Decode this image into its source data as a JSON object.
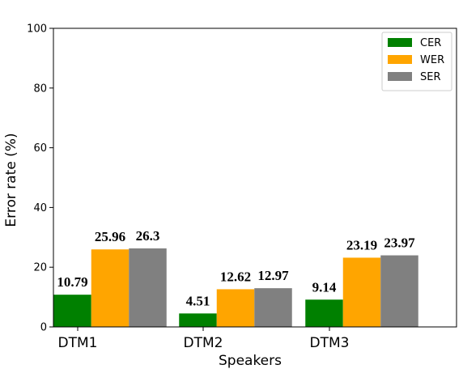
{
  "chart_data": {
    "type": "bar",
    "title": "",
    "xlabel": "Speakers",
    "ylabel": "Error rate (%)",
    "ylim": [
      0,
      100
    ],
    "yticks": [
      0,
      20,
      40,
      60,
      80,
      100
    ],
    "categories": [
      "DTM1",
      "DTM2",
      "DTM3"
    ],
    "series": [
      {
        "name": "CER",
        "color": "#008000",
        "values": [
          10.79,
          4.51,
          9.14
        ],
        "labels": [
          "10.79",
          "4.51",
          "9.14"
        ]
      },
      {
        "name": "WER",
        "color": "#FFA500",
        "values": [
          25.96,
          12.62,
          23.19
        ],
        "labels": [
          "25.96",
          "12.62",
          "23.19"
        ]
      },
      {
        "name": "SER",
        "color": "#808080",
        "values": [
          26.3,
          12.97,
          23.97
        ],
        "labels": [
          "26.3",
          "12.97",
          "23.97"
        ]
      }
    ],
    "legend_position": "top-right",
    "grid": false
  }
}
